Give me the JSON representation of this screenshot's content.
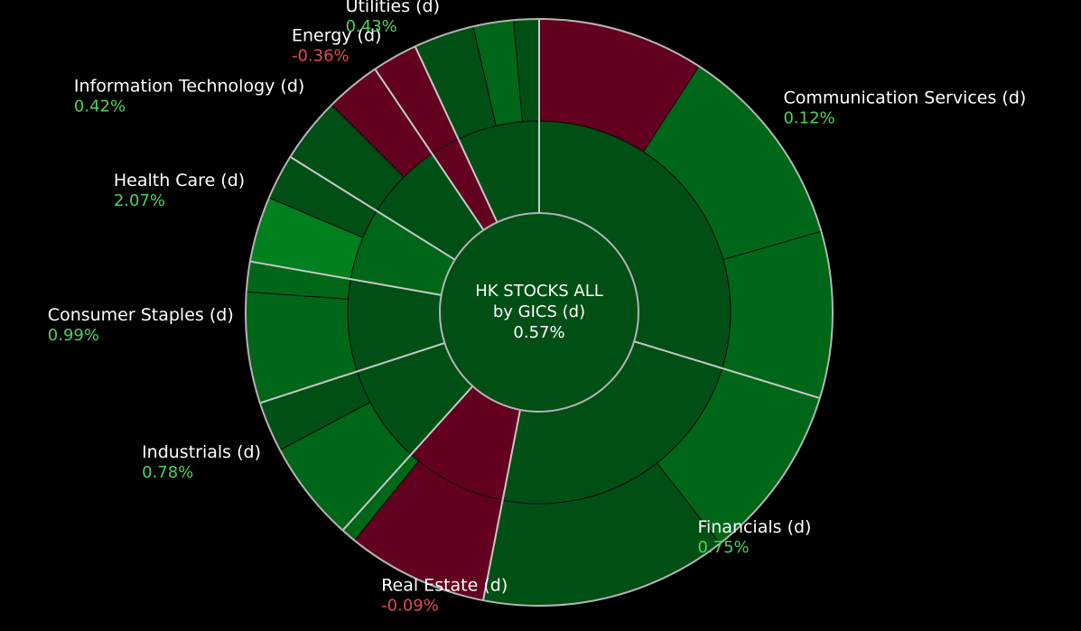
{
  "chart_data": {
    "type": "sunburst",
    "title_lines": [
      "HK STOCKS ALL",
      "by GICS (d)"
    ],
    "center_value": "0.57%",
    "colors": {
      "pos_dark": "#004f15",
      "pos_mid": "#006618",
      "pos_bright": "#00801e",
      "neg": "#630020",
      "ring": "#b4b4b4",
      "label_pos": "#4cd35a",
      "label_neg": "#e04b56",
      "background": "#000000"
    },
    "sectors": [
      {
        "name": "Communication Services (d)",
        "change": "0.12%",
        "sign": "pos",
        "label_pos": "right",
        "start": 0,
        "end": 107,
        "mid_color": "pos_dark",
        "outer": [
          {
            "start": 0,
            "end": 33,
            "color": "neg"
          },
          {
            "start": 33,
            "end": 74,
            "color": "pos_mid"
          },
          {
            "start": 74,
            "end": 107,
            "color": "pos_mid"
          }
        ]
      },
      {
        "name": "Financials (d)",
        "change": "0.75%",
        "sign": "pos",
        "label_pos": "right",
        "start": 107,
        "end": 191,
        "mid_color": "pos_dark",
        "outer": [
          {
            "start": 107,
            "end": 142,
            "color": "pos_mid"
          },
          {
            "start": 142,
            "end": 191,
            "color": "pos_dark"
          }
        ]
      },
      {
        "name": "Real Estate (d)",
        "change": "-0.09%",
        "sign": "neg",
        "label_pos": "below",
        "start": 191,
        "end": 222,
        "mid_color": "neg",
        "outer": [
          {
            "start": 191,
            "end": 219,
            "color": "neg"
          },
          {
            "start": 219,
            "end": 222,
            "color": "pos_mid"
          }
        ]
      },
      {
        "name": "Industrials (d)",
        "change": "0.78%",
        "sign": "pos",
        "label_pos": "left",
        "start": 222,
        "end": 252,
        "mid_color": "pos_dark",
        "outer": [
          {
            "start": 222,
            "end": 242,
            "color": "pos_mid"
          },
          {
            "start": 242,
            "end": 252,
            "color": "pos_dark"
          }
        ]
      },
      {
        "name": "Consumer Staples (d)",
        "change": "0.99%",
        "sign": "pos",
        "label_pos": "left",
        "start": 252,
        "end": 280,
        "mid_color": "pos_dark",
        "outer": [
          {
            "start": 252,
            "end": 274,
            "color": "pos_mid"
          },
          {
            "start": 274,
            "end": 280,
            "color": "pos_mid"
          }
        ]
      },
      {
        "name": "Health Care (d)",
        "change": "2.07%",
        "sign": "pos",
        "label_pos": "left",
        "start": 280,
        "end": 302,
        "mid_color": "pos_mid",
        "outer": [
          {
            "start": 280,
            "end": 293,
            "color": "pos_bright"
          },
          {
            "start": 293,
            "end": 302,
            "color": "pos_dark"
          }
        ]
      },
      {
        "name": "Information Technology (d)",
        "change": "0.42%",
        "sign": "pos",
        "label_pos": "left",
        "start": 302,
        "end": 326,
        "mid_color": "pos_dark",
        "outer": [
          {
            "start": 302,
            "end": 315,
            "color": "pos_dark"
          },
          {
            "start": 315,
            "end": 326,
            "color": "neg"
          }
        ]
      },
      {
        "name": "Energy (d)",
        "change": "-0.36%",
        "sign": "neg",
        "label_pos": "left",
        "start": 326,
        "end": 335,
        "mid_color": "neg",
        "outer": [
          {
            "start": 326,
            "end": 335,
            "color": "neg"
          }
        ]
      },
      {
        "name": "Utilities (d)",
        "change": "0.43%",
        "sign": "pos",
        "label_pos": "left",
        "start": 335,
        "end": 360,
        "mid_color": "pos_dark",
        "outer": [
          {
            "start": 335,
            "end": 347,
            "color": "pos_dark"
          },
          {
            "start": 347,
            "end": 355,
            "color": "pos_mid"
          },
          {
            "start": 355,
            "end": 360,
            "color": "pos_dark"
          }
        ]
      }
    ]
  }
}
